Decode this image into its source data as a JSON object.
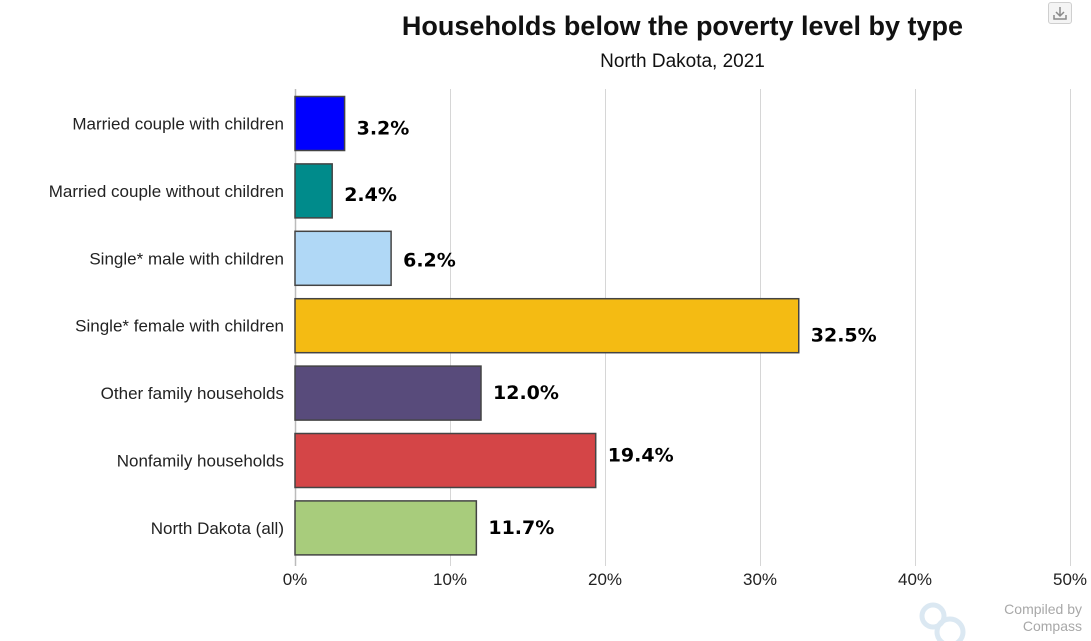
{
  "chart_data": {
    "type": "bar",
    "orientation": "horizontal",
    "title": "Households below the poverty level by type",
    "subtitle": "North Dakota, 2021",
    "categories": [
      "Married couple with children",
      "Married couple without children",
      "Single* male with children",
      "Single* female with children",
      "Other family households",
      "Nonfamily households",
      "North Dakota (all)"
    ],
    "values": [
      3.2,
      2.4,
      6.2,
      32.5,
      12.0,
      19.4,
      11.7
    ],
    "value_labels": [
      "3.2%",
      "2.4%",
      "6.2%",
      "32.5%",
      "12.0%",
      "19.4%",
      "11.7%"
    ],
    "colors": [
      "#0000ff",
      "#008b8b",
      "#b0d8f6",
      "#f4bb13",
      "#584b7b",
      "#d44547",
      "#a8cc7c"
    ],
    "xlim": [
      0,
      50
    ],
    "x_ticks": [
      "0%",
      "10%",
      "20%",
      "30%",
      "40%",
      "50%"
    ],
    "x_tick_values": [
      0,
      10,
      20,
      30,
      40,
      50
    ],
    "grid": true,
    "legend": "none"
  },
  "watermark": {
    "line1": "Compiled by",
    "line2": "Compass"
  },
  "download_icon": "download-icon"
}
